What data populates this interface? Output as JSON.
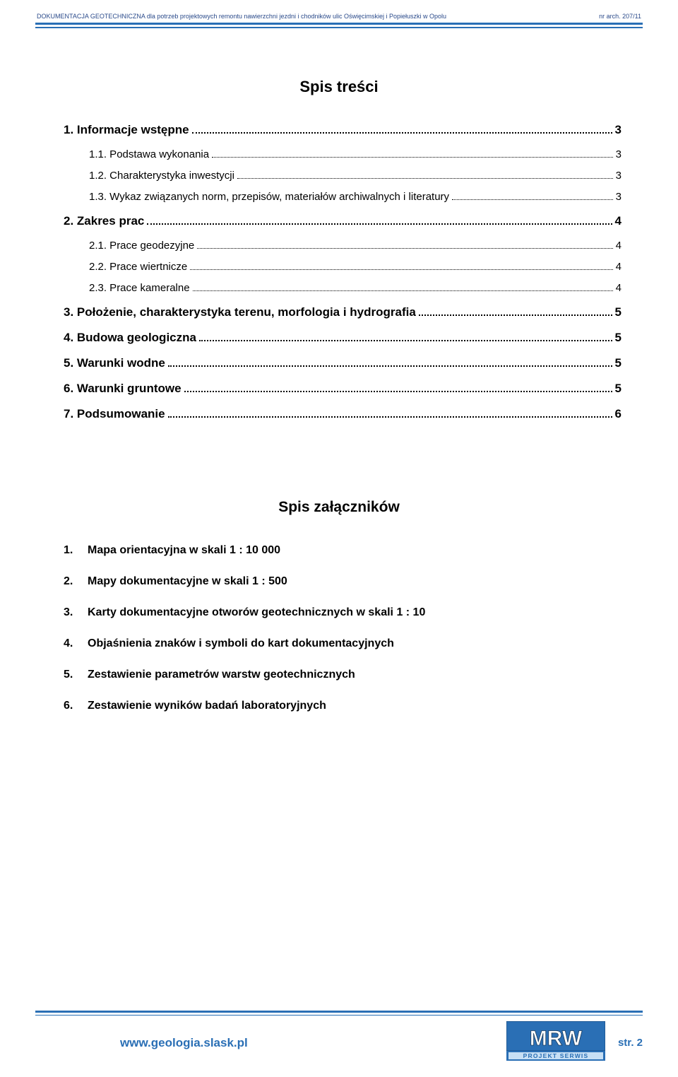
{
  "header": {
    "title": "DOKUMENTACJA GEOTECHNICZNA dla potrzeb projektowych remontu nawierzchni jezdni i chodników ulic Oświęcimskiej i Popiełuszki w Opolu",
    "ref": "nr arch. 207/11",
    "line_color": "#2a6fb5"
  },
  "main_title": "Spis treści",
  "toc": {
    "items": [
      {
        "level": 1,
        "label": "1. Informacje wstępne",
        "page": "3"
      },
      {
        "level": 2,
        "label": "1.1. Podstawa wykonania",
        "page": "3"
      },
      {
        "level": 2,
        "label": "1.2. Charakterystyka inwestycji",
        "page": "3"
      },
      {
        "level": 2,
        "label": "1.3. Wykaz związanych norm, przepisów, materiałów archiwalnych i literatury",
        "page": "3"
      },
      {
        "level": 1,
        "label": "2. Zakres prac",
        "page": "4"
      },
      {
        "level": 2,
        "label": "2.1. Prace geodezyjne",
        "page": "4"
      },
      {
        "level": 2,
        "label": "2.2. Prace wiertnicze",
        "page": "4"
      },
      {
        "level": 2,
        "label": "2.3. Prace kameralne",
        "page": "4"
      },
      {
        "level": 1,
        "label": "3. Położenie, charakterystyka terenu, morfologia i hydrografia",
        "page": "5"
      },
      {
        "level": 1,
        "label": "4. Budowa geologiczna",
        "page": "5"
      },
      {
        "level": 1,
        "label": "5. Warunki wodne",
        "page": "5"
      },
      {
        "level": 1,
        "label": "6. Warunki gruntowe",
        "page": "5"
      },
      {
        "level": 1,
        "label": "7. Podsumowanie",
        "page": "6"
      }
    ]
  },
  "appendix": {
    "title": "Spis załączników",
    "items": [
      {
        "num": "1.",
        "text": "Mapa orientacyjna w skali 1 : 10 000"
      },
      {
        "num": "2.",
        "text": "Mapy dokumentacyjne w skali 1 : 500"
      },
      {
        "num": "3.",
        "text": "Karty dokumentacyjne otworów geotechnicznych w skali 1 : 10"
      },
      {
        "num": "4.",
        "text": "Objaśnienia znaków i symboli do kart dokumentacyjnych"
      },
      {
        "num": "5.",
        "text": "Zestawienie parametrów warstw geotechnicznych"
      },
      {
        "num": "6.",
        "text": "Zestawienie wyników badań laboratoryjnych"
      }
    ]
  },
  "footer": {
    "url": "www.geologia.slask.pl",
    "page_label": "str. 2",
    "logo_top": "MRW",
    "logo_bottom": "PROJEKT SERWIS",
    "logo_bg": "#2a6fb5",
    "logo_text_color": "#ffffff",
    "logo_subbar_bg": "#c7dff4"
  },
  "colors": {
    "text": "#000000",
    "accent": "#2a6fb5",
    "header_text": "#2a4a8a"
  }
}
